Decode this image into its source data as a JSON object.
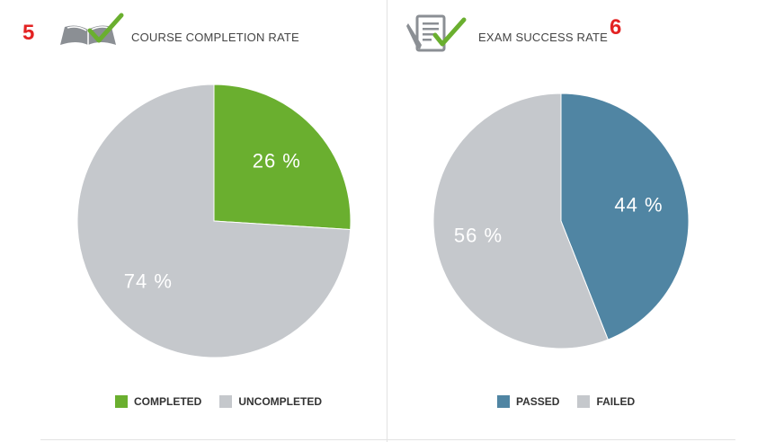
{
  "colors": {
    "completed": "#6aaf2f",
    "uncompleted": "#c5c8cc",
    "passed": "#5085a3",
    "failed": "#c5c8cc",
    "badge": "#e32222",
    "icon_gray": "#8b8f94",
    "check_green": "#6aaf2f"
  },
  "panels": {
    "left": {
      "badge": "5",
      "title": "COURSE COMPLETION RATE",
      "icon": "open-book-check-icon"
    },
    "right": {
      "badge": "6",
      "title": "EXAM SUCCESS RATE",
      "icon": "exam-checklist-icon"
    }
  },
  "chart_data": [
    {
      "type": "pie",
      "title": "COURSE COMPLETION RATE",
      "labels": [
        "COMPLETED",
        "UNCOMPLETED"
      ],
      "values": [
        26,
        74
      ],
      "value_labels": [
        "26 %",
        "74 %"
      ],
      "colors": [
        "#6aaf2f",
        "#c5c8cc"
      ],
      "legend_position": "bottom"
    },
    {
      "type": "pie",
      "title": "EXAM SUCCESS RATE",
      "labels": [
        "PASSED",
        "FAILED"
      ],
      "values": [
        44,
        56
      ],
      "value_labels": [
        "44 %",
        "56 %"
      ],
      "colors": [
        "#5085a3",
        "#c5c8cc"
      ],
      "legend_position": "bottom"
    }
  ]
}
